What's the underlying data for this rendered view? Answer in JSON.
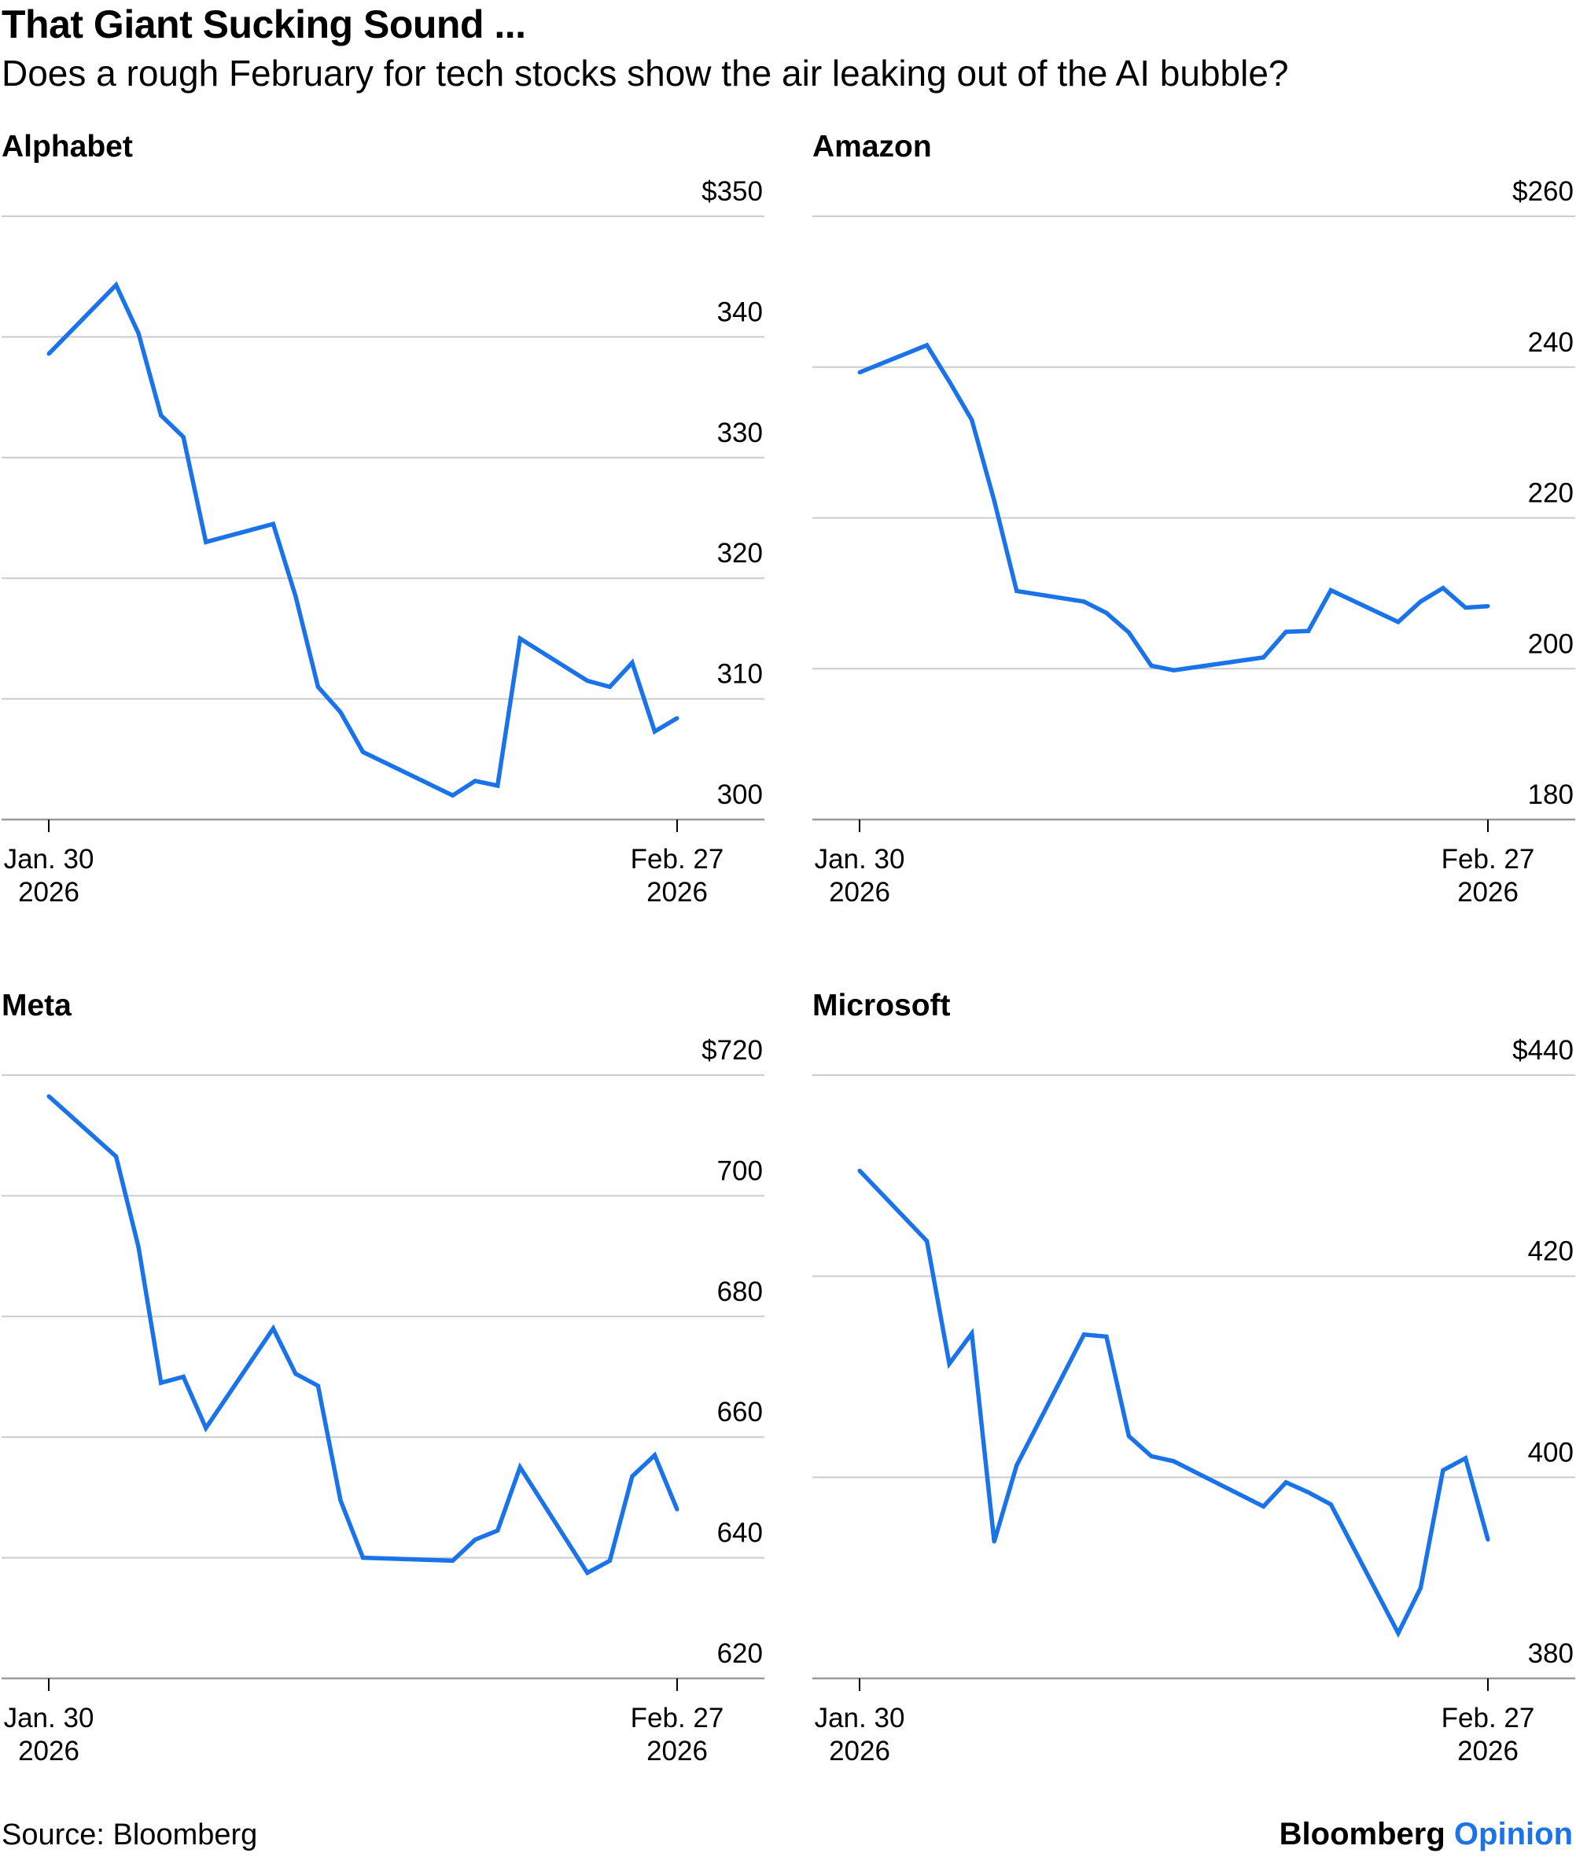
{
  "title": "That Giant Sucking Sound ...",
  "subtitle": "Does a rough February for tech stocks show the air leaking out of the AI bubble?",
  "footer": {
    "source": "Source: Bloomberg",
    "brand_bold": "Bloomberg",
    "brand_accent": "Opinion"
  },
  "colors": {
    "line": "#1a73e8",
    "grid": "#cccccc",
    "axis": "#999999",
    "brand_accent": "#1a73e8"
  },
  "chart_data": [
    {
      "type": "line",
      "title": "Alphabet",
      "xticks": [
        {
          "x": 0,
          "label": [
            "Jan. 30",
            "2026"
          ]
        },
        {
          "x": 28,
          "label": [
            "Feb. 27",
            "2026"
          ]
        }
      ],
      "yticks": [
        {
          "v": 350,
          "label": "$350"
        },
        {
          "v": 340,
          "label": "340"
        },
        {
          "v": 330,
          "label": "330"
        },
        {
          "v": 320,
          "label": "320"
        },
        {
          "v": 310,
          "label": "310"
        },
        {
          "v": 300,
          "label": "300"
        }
      ],
      "ylim": [
        300,
        350
      ],
      "x": [
        0,
        3,
        4,
        5,
        6,
        7,
        10,
        11,
        12,
        13,
        14,
        18,
        19,
        20,
        21,
        24,
        25,
        26,
        27,
        28
      ],
      "values": [
        338.6,
        344.3,
        340.3,
        333.5,
        331.7,
        323.0,
        324.5,
        318.5,
        311.0,
        308.9,
        305.6,
        302.0,
        303.2,
        302.8,
        315.0,
        311.5,
        311.0,
        313.0,
        307.3,
        308.4
      ]
    },
    {
      "type": "line",
      "title": "Amazon",
      "xticks": [
        {
          "x": 0,
          "label": [
            "Jan. 30",
            "2026"
          ]
        },
        {
          "x": 28,
          "label": [
            "Feb. 27",
            "2026"
          ]
        }
      ],
      "yticks": [
        {
          "v": 260,
          "label": "$260"
        },
        {
          "v": 240,
          "label": "240"
        },
        {
          "v": 220,
          "label": "220"
        },
        {
          "v": 200,
          "label": "200"
        },
        {
          "v": 180,
          "label": "180"
        }
      ],
      "ylim": [
        180,
        260
      ],
      "x": [
        0,
        3,
        4,
        5,
        6,
        7,
        10,
        11,
        12,
        13,
        14,
        18,
        19,
        20,
        21,
        24,
        25,
        26,
        27,
        28
      ],
      "values": [
        239.3,
        242.9,
        238.1,
        233.0,
        222.3,
        210.3,
        208.9,
        207.4,
        204.8,
        200.4,
        199.8,
        201.5,
        204.9,
        205.0,
        210.4,
        206.2,
        208.9,
        210.7,
        208.1,
        208.3
      ]
    },
    {
      "type": "line",
      "title": "Meta",
      "xticks": [
        {
          "x": 0,
          "label": [
            "Jan. 30",
            "2026"
          ]
        },
        {
          "x": 28,
          "label": [
            "Feb. 27",
            "2026"
          ]
        }
      ],
      "yticks": [
        {
          "v": 720,
          "label": "$720"
        },
        {
          "v": 700,
          "label": "700"
        },
        {
          "v": 680,
          "label": "680"
        },
        {
          "v": 660,
          "label": "660"
        },
        {
          "v": 640,
          "label": "640"
        },
        {
          "v": 620,
          "label": "620"
        }
      ],
      "ylim": [
        620,
        720
      ],
      "x": [
        0,
        3,
        4,
        5,
        6,
        7,
        10,
        11,
        12,
        13,
        14,
        18,
        19,
        20,
        21,
        24,
        25,
        26,
        27,
        28
      ],
      "values": [
        716.5,
        706.5,
        691.5,
        669.0,
        670.0,
        661.5,
        678.0,
        670.5,
        668.5,
        649.5,
        640.0,
        639.5,
        643.0,
        644.5,
        655.0,
        637.5,
        639.5,
        653.5,
        657.0,
        648.0
      ]
    },
    {
      "type": "line",
      "title": "Microsoft",
      "xticks": [
        {
          "x": 0,
          "label": [
            "Jan. 30",
            "2026"
          ]
        },
        {
          "x": 28,
          "label": [
            "Feb. 27",
            "2026"
          ]
        }
      ],
      "yticks": [
        {
          "v": 440,
          "label": "$440"
        },
        {
          "v": 420,
          "label": "420"
        },
        {
          "v": 400,
          "label": "400"
        },
        {
          "v": 380,
          "label": "380"
        }
      ],
      "ylim": [
        380,
        440
      ],
      "x": [
        0,
        3,
        4,
        5,
        6,
        7,
        10,
        11,
        12,
        13,
        14,
        18,
        19,
        20,
        21,
        24,
        25,
        26,
        27,
        28
      ],
      "values": [
        430.5,
        423.5,
        411.3,
        414.3,
        393.6,
        401.2,
        414.2,
        414.0,
        404.1,
        402.1,
        401.6,
        397.1,
        399.5,
        398.5,
        397.3,
        384.5,
        389.0,
        400.7,
        401.9,
        393.8
      ]
    }
  ]
}
